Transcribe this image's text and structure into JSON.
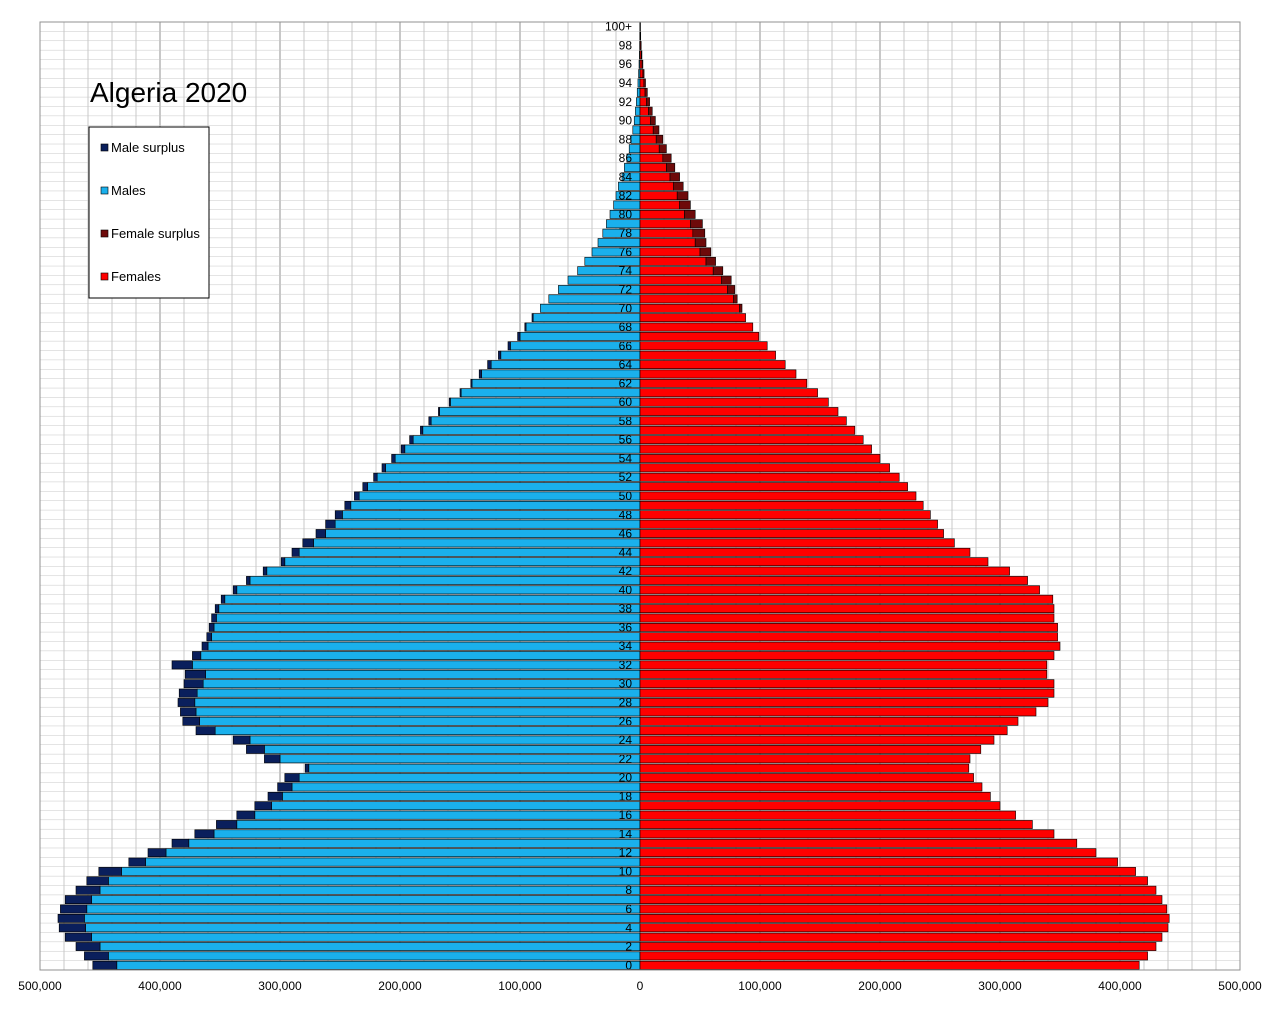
{
  "chart_data": {
    "type": "bar",
    "orientation": "horizontal",
    "title": "Algeria 2020",
    "x_ticks": [
      "500,000",
      "400,000",
      "300,000",
      "200,000",
      "100,000",
      "0",
      "100,000",
      "200,000",
      "300,000",
      "400,000",
      "500,000"
    ],
    "xlim": [
      -500000,
      500000
    ],
    "age_labels": [
      "0",
      "2",
      "4",
      "6",
      "8",
      "10",
      "12",
      "14",
      "16",
      "18",
      "20",
      "22",
      "24",
      "26",
      "28",
      "30",
      "32",
      "34",
      "36",
      "38",
      "40",
      "42",
      "44",
      "46",
      "48",
      "50",
      "52",
      "54",
      "56",
      "58",
      "60",
      "62",
      "64",
      "66",
      "68",
      "70",
      "72",
      "74",
      "76",
      "78",
      "80",
      "82",
      "84",
      "86",
      "88",
      "90",
      "92",
      "94",
      "96",
      "98",
      "100+"
    ],
    "legend": {
      "position": "top-left",
      "entries": [
        {
          "label": "Male surplus",
          "color": "#0a1f5c"
        },
        {
          "label": "Males",
          "color": "#1ab0ec"
        },
        {
          "label": "Female surplus",
          "color": "#6e0a0a"
        },
        {
          "label": "Females",
          "color": "#ff0000"
        }
      ]
    },
    "colors": {
      "male": "#1ab0ec",
      "male_surplus": "#0a1f5c",
      "female": "#ff0000",
      "female_surplus": "#6e0a0a",
      "grid": "#c8c8c8",
      "grid_major": "#909090"
    },
    "ages": [
      "0",
      "1",
      "2",
      "3",
      "4",
      "5",
      "6",
      "7",
      "8",
      "9",
      "10",
      "11",
      "12",
      "13",
      "14",
      "15",
      "16",
      "17",
      "18",
      "19",
      "20",
      "21",
      "22",
      "23",
      "24",
      "25",
      "26",
      "27",
      "28",
      "29",
      "30",
      "31",
      "32",
      "33",
      "34",
      "35",
      "36",
      "37",
      "38",
      "39",
      "40",
      "41",
      "42",
      "43",
      "44",
      "45",
      "46",
      "47",
      "48",
      "49",
      "50",
      "51",
      "52",
      "53",
      "54",
      "55",
      "56",
      "57",
      "58",
      "59",
      "60",
      "61",
      "62",
      "63",
      "64",
      "65",
      "66",
      "67",
      "68",
      "69",
      "70",
      "71",
      "72",
      "73",
      "74",
      "75",
      "76",
      "77",
      "78",
      "79",
      "80",
      "81",
      "82",
      "83",
      "84",
      "85",
      "86",
      "87",
      "88",
      "89",
      "90",
      "91",
      "92",
      "93",
      "94",
      "95",
      "96",
      "97",
      "98",
      "99",
      "100+"
    ],
    "males": [
      436000,
      443000,
      450000,
      457000,
      462000,
      463000,
      461000,
      457000,
      450000,
      443000,
      432000,
      412000,
      395000,
      376000,
      355000,
      336000,
      321000,
      307000,
      298000,
      290000,
      284000,
      276000,
      300000,
      313000,
      325000,
      354000,
      367000,
      370000,
      371000,
      369000,
      364000,
      362000,
      373000,
      366000,
      360000,
      357000,
      355000,
      353000,
      351000,
      346000,
      336000,
      325000,
      311000,
      296000,
      284000,
      272000,
      262000,
      254000,
      248000,
      241000,
      234000,
      227000,
      219000,
      212000,
      204000,
      196000,
      189000,
      181000,
      174000,
      167000,
      158000,
      149000,
      140000,
      132000,
      124000,
      116000,
      108000,
      100000,
      95000,
      89000,
      83000,
      76000,
      68000,
      60000,
      52000,
      46000,
      40000,
      35000,
      31000,
      28000,
      25000,
      22000,
      20000,
      18000,
      15000,
      13000,
      11000,
      9000,
      7500,
      6000,
      4800,
      3800,
      3000,
      2300,
      1700,
      1200,
      800,
      500,
      300,
      200,
      120
    ],
    "females": [
      416000,
      423000,
      430000,
      435000,
      440000,
      441000,
      439000,
      435000,
      430000,
      423000,
      413000,
      398000,
      380000,
      364000,
      345000,
      327000,
      313000,
      300000,
      292000,
      285000,
      278000,
      274000,
      275000,
      284000,
      295000,
      306000,
      315000,
      330000,
      340000,
      345000,
      345000,
      339000,
      339000,
      345000,
      350000,
      348000,
      348000,
      345000,
      345000,
      344000,
      333000,
      323000,
      308000,
      290000,
      275000,
      262000,
      253000,
      248000,
      242000,
      236000,
      230000,
      223000,
      216000,
      208000,
      200000,
      193000,
      186000,
      179000,
      172000,
      165000,
      157000,
      148000,
      139000,
      130000,
      121000,
      113000,
      106000,
      99000,
      94000,
      88000,
      83000,
      78000,
      73000,
      68000,
      61000,
      55000,
      50000,
      46000,
      44000,
      42000,
      37000,
      33000,
      31000,
      28000,
      25000,
      22000,
      19000,
      16000,
      13500,
      11000,
      8800,
      7000,
      5500,
      4200,
      3200,
      2400,
      1700,
      1100,
      700,
      400,
      250
    ],
    "male_surplus": [
      20000,
      20000,
      20000,
      22000,
      22000,
      22000,
      22000,
      22000,
      20000,
      18000,
      19000,
      14000,
      15000,
      14000,
      16000,
      17000,
      15000,
      14000,
      12000,
      12000,
      12000,
      3000,
      13000,
      15000,
      14000,
      16000,
      14000,
      13000,
      14000,
      15000,
      16000,
      17000,
      17000,
      7000,
      5000,
      4000,
      4000,
      4000,
      3000,
      3000,
      3000,
      3000,
      3000,
      3000,
      6000,
      9000,
      8000,
      8000,
      6000,
      5000,
      4000,
      4000,
      3000,
      3000,
      3000,
      3000,
      3000,
      2000,
      2000,
      1000,
      1000,
      1000,
      1000,
      2000,
      3000,
      2000,
      2000,
      2000,
      1000,
      1000,
      0,
      0,
      0,
      0,
      0,
      0,
      0,
      0,
      0,
      0,
      0,
      0,
      0,
      0,
      0,
      0,
      0,
      0,
      0,
      0,
      0,
      0,
      0,
      0,
      0,
      0,
      0,
      0,
      0,
      0,
      0
    ],
    "female_surplus": [
      0,
      0,
      0,
      0,
      0,
      0,
      0,
      0,
      0,
      0,
      0,
      0,
      0,
      0,
      0,
      0,
      0,
      0,
      0,
      0,
      0,
      0,
      0,
      0,
      0,
      0,
      0,
      0,
      0,
      0,
      0,
      0,
      0,
      0,
      0,
      0,
      0,
      0,
      0,
      0,
      0,
      0,
      0,
      0,
      0,
      0,
      0,
      0,
      0,
      0,
      0,
      0,
      0,
      0,
      0,
      0,
      0,
      0,
      0,
      0,
      0,
      0,
      0,
      0,
      0,
      0,
      0,
      0,
      0,
      0,
      2000,
      3000,
      6000,
      8000,
      8000,
      8000,
      9000,
      9000,
      10000,
      10000,
      9000,
      9000,
      9000,
      8000,
      8000,
      7000,
      7000,
      6000,
      5500,
      4800,
      4000,
      3200,
      2500,
      1900,
      1400,
      1000,
      700,
      500,
      300,
      200,
      100
    ]
  }
}
